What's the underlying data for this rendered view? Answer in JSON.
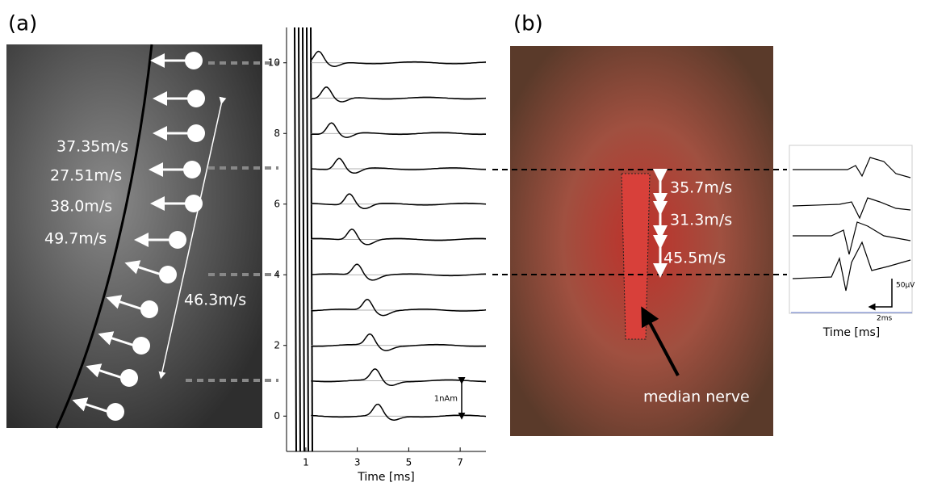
{
  "panel_a": {
    "label": "(a)",
    "velocities": [
      "37.35m/s",
      "27.51m/s",
      "38.0m/s",
      "49.7m/s",
      "46.3m/s"
    ],
    "plot": {
      "xlim": [
        0.25,
        8
      ],
      "ylim": [
        -1,
        11
      ],
      "xticks": [
        1,
        3,
        5,
        7
      ],
      "yticks": [
        0,
        2,
        4,
        6,
        8,
        10
      ],
      "xlabel": "Time [ms]",
      "scale_label": "1nAm",
      "traces": [
        {
          "offset": 0,
          "peak": 3.8
        },
        {
          "offset": 1,
          "peak": 3.7
        },
        {
          "offset": 2,
          "peak": 3.5
        },
        {
          "offset": 3,
          "peak": 3.4
        },
        {
          "offset": 4,
          "peak": 3.0
        },
        {
          "offset": 5,
          "peak": 2.8
        },
        {
          "offset": 6,
          "peak": 2.7
        },
        {
          "offset": 7,
          "peak": 2.3
        },
        {
          "offset": 8,
          "peak": 2.0
        },
        {
          "offset": 9,
          "peak": 1.8
        },
        {
          "offset": 10,
          "peak": 1.5
        }
      ]
    }
  },
  "panel_b": {
    "label": "(b)",
    "velocities": [
      "35.7m/s",
      "31.3m/s",
      "45.5m/s"
    ],
    "nerve_label": "median nerve",
    "inset": {
      "amp_scale": "50μV",
      "time_scale": "2ms",
      "xlabel": "Time [ms]"
    }
  }
}
